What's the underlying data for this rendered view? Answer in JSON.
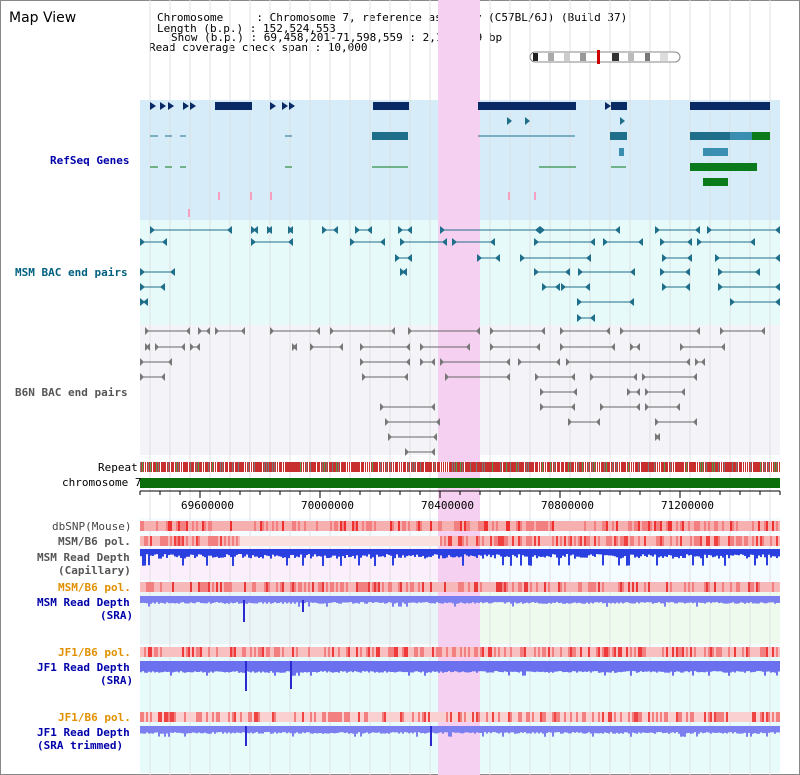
{
  "view_title": "Map View",
  "info": {
    "chromosome": "Chromosome     : Chromosome 7, reference assembly (C57BL/6J) (Build 37)",
    "length": "Length (b.p.) : 152,524,553",
    "show": "Show (b.p.) : 69,458,201-71,598,559 : 2,140,359 bp",
    "span": "Read coverage check span : 10,000"
  },
  "tracks": {
    "refseq": "RefSeq Genes",
    "msm_bac": "MSM BAC end pairs",
    "b6n_bac": "B6N BAC end pairs",
    "repeat": "Repeat",
    "chromosome": "chromosome 7",
    "dbsnp": "dbSNP(Mouse)",
    "msm_b6_pol": "MSM/B6 pol.",
    "msm_depth_cap_1": "MSM Read Depth",
    "msm_depth_cap_2": "(Capillary)",
    "msm_b6_pol2": "MSM/B6 pol.",
    "msm_depth_sra_1": "MSM Read Depth",
    "msm_depth_sra_2": "(SRA)",
    "jf1_b6_pol": "JF1/B6 pol.",
    "jf1_depth_1": "JF1 Read Depth",
    "jf1_depth_2": "(SRA)",
    "jf1_b6_pol2": "JF1/B6 pol.",
    "jf1_trim_1": "JF1 Read Depth",
    "jf1_trim_2": "(SRA trimmed)"
  },
  "axis_ticks": [
    "69600000",
    "70000000",
    "70400000",
    "70800000",
    "71200000"
  ],
  "colors": {
    "refseq_bg": "#d6ecf8",
    "bac_bg": "#e6fafa",
    "b6n_bg": "#f4f4f8",
    "highlight": "#f5d0f0",
    "dark_navy": "#0a2a66",
    "teal": "#1f6f8b",
    "green": "#0a7a1a",
    "chrom_green": "#0b6e0b",
    "depth_blue": "#2a3fe0",
    "sra_blue": "#7b7ff0",
    "snp_red": "#f04040",
    "orange_label": "#e09000",
    "label_navy": "#0000aa",
    "msm_label": "#006080"
  }
}
